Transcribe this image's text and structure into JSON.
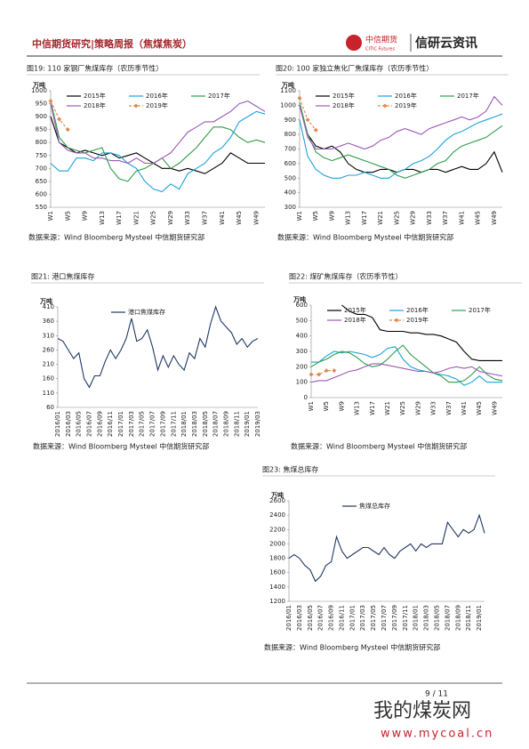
{
  "header": {
    "title": "中信期货研究|策略周报（焦煤焦炭）",
    "logo_cn": "中信期货",
    "logo_en": "CITIC Futures",
    "brand": "信研云资讯"
  },
  "chart_data": [
    {
      "type": "line",
      "title": "图19: 110 家钢厂焦煤库存（农历季节性）",
      "unit": "万吨",
      "categories": [
        "W1",
        null,
        "W5",
        null,
        "W9",
        null,
        "W13",
        null,
        "W17",
        null,
        "W21",
        null,
        "W25",
        null,
        "W29",
        null,
        "W33",
        null,
        "W37",
        null,
        "W41",
        null,
        "W45",
        null,
        "W49",
        null
      ],
      "series": [
        {
          "name": "2015年",
          "color": "#000000",
          "values": [
            900,
            800,
            780,
            760,
            770,
            760,
            750,
            760,
            740,
            750,
            760,
            740,
            720,
            700,
            700,
            690,
            700,
            690,
            680,
            700,
            720,
            760,
            740,
            720,
            720,
            720
          ]
        },
        {
          "name": "2016年",
          "color": "#1aa3d9",
          "values": [
            720,
            690,
            690,
            740,
            740,
            730,
            760,
            760,
            750,
            720,
            700,
            650,
            620,
            610,
            640,
            620,
            680,
            700,
            720,
            760,
            780,
            820,
            880,
            900,
            920,
            910
          ]
        },
        {
          "name": "2017年",
          "color": "#2e9c4a",
          "values": [
            960,
            820,
            780,
            770,
            760,
            770,
            780,
            700,
            660,
            650,
            690,
            700,
            720,
            740,
            700,
            720,
            750,
            780,
            820,
            860,
            860,
            850,
            820,
            800,
            810,
            800
          ]
        },
        {
          "name": "2018年",
          "color": "#9b59b6",
          "values": [
            950,
            800,
            770,
            760,
            760,
            740,
            740,
            730,
            730,
            720,
            740,
            720,
            720,
            740,
            760,
            800,
            840,
            860,
            880,
            880,
            900,
            920,
            950,
            960,
            940,
            920
          ]
        },
        {
          "name": "2019年",
          "color": "#e08850",
          "marker": "diamond",
          "dash": true,
          "values": [
            960,
            890,
            850,
            null,
            null,
            null,
            null,
            null,
            null,
            null,
            null,
            null,
            null,
            null,
            null,
            null,
            null,
            null,
            null,
            null,
            null,
            null,
            null,
            null,
            null,
            null
          ]
        }
      ],
      "ylim": [
        550,
        1000
      ],
      "yticks": [
        550,
        600,
        650,
        700,
        750,
        800,
        850,
        900,
        950,
        1000
      ],
      "grid": false
    },
    {
      "type": "line",
      "title": "图20: 100 家独立焦化厂焦煤库存（农历季节性）",
      "unit": "万吨",
      "categories": [
        "W1",
        null,
        "W5",
        null,
        "W9",
        null,
        "W13",
        null,
        "W17",
        null,
        "W21",
        null,
        "W25",
        null,
        "W29",
        null,
        "W33",
        null,
        "W37",
        null,
        "W41",
        null,
        "W45",
        null,
        "W49",
        null
      ],
      "series": [
        {
          "name": "2015年",
          "color": "#000000",
          "values": [
            1000,
            800,
            720,
            700,
            720,
            680,
            600,
            560,
            540,
            540,
            560,
            560,
            540,
            560,
            560,
            540,
            560,
            560,
            540,
            560,
            580,
            560,
            560,
            600,
            680,
            540
          ]
        },
        {
          "name": "2016年",
          "color": "#1aa3d9",
          "values": [
            900,
            650,
            560,
            520,
            500,
            500,
            520,
            520,
            540,
            520,
            500,
            500,
            540,
            560,
            600,
            620,
            650,
            700,
            760,
            800,
            820,
            850,
            880,
            900,
            920,
            940
          ]
        },
        {
          "name": "2017年",
          "color": "#2e9c4a",
          "values": [
            1020,
            800,
            680,
            640,
            620,
            640,
            660,
            640,
            620,
            600,
            580,
            560,
            520,
            500,
            520,
            540,
            560,
            600,
            620,
            680,
            720,
            740,
            760,
            780,
            820,
            860
          ]
        },
        {
          "name": "2018年",
          "color": "#9b59b6",
          "values": [
            1000,
            780,
            700,
            700,
            700,
            720,
            740,
            720,
            700,
            720,
            760,
            780,
            820,
            840,
            820,
            800,
            840,
            860,
            880,
            900,
            920,
            900,
            920,
            960,
            1060,
            1000
          ]
        },
        {
          "name": "2019年",
          "color": "#e08850",
          "marker": "diamond",
          "dash": true,
          "values": [
            1050,
            900,
            830,
            null,
            null,
            null,
            null,
            null,
            null,
            null,
            null,
            null,
            null,
            null,
            null,
            null,
            null,
            null,
            null,
            null,
            null,
            null,
            null,
            null,
            null,
            null
          ]
        }
      ],
      "ylim": [
        300,
        1100
      ],
      "yticks": [
        300,
        400,
        500,
        600,
        700,
        800,
        900,
        1000,
        1100
      ],
      "grid": false
    },
    {
      "type": "line",
      "title": "图21:   港口焦煤库存",
      "unit": "万吨",
      "categories": [
        "2016/01",
        null,
        "2016/03",
        null,
        "2016/05",
        null,
        "2016/07",
        null,
        "2016/09",
        null,
        "2016/11",
        null,
        "2017/01",
        null,
        "2017/03",
        null,
        "2017/05",
        null,
        "2017/07",
        null,
        "2017/09",
        null,
        "2017/11",
        null,
        "2018/01",
        null,
        "2018/03",
        null,
        "2018/05",
        null,
        "2018/07",
        null,
        "2018/09",
        null,
        "2018/11",
        null,
        "2019/01",
        null,
        "2019/03"
      ],
      "series": [
        {
          "name": "港口焦煤库存",
          "color": "#1f3864",
          "values": [
            300,
            290,
            260,
            230,
            250,
            160,
            130,
            170,
            170,
            220,
            260,
            230,
            260,
            300,
            370,
            290,
            300,
            330,
            270,
            190,
            240,
            200,
            240,
            210,
            190,
            250,
            230,
            300,
            270,
            350,
            410,
            360,
            340,
            320,
            280,
            300,
            270,
            290,
            300
          ]
        }
      ],
      "ylim": [
        60,
        410
      ],
      "yticks": [
        60,
        110,
        160,
        210,
        260,
        310,
        360,
        410
      ],
      "grid": false
    },
    {
      "type": "line",
      "title": "图22:   煤矿焦煤库存（农历季节性）",
      "unit": "万吨",
      "categories": [
        "W1",
        null,
        "W5",
        null,
        "W9",
        null,
        "W13",
        null,
        "W17",
        null,
        "W21",
        null,
        "W25",
        null,
        "W29",
        null,
        "W33",
        null,
        "W37",
        null,
        "W41",
        null,
        "W45",
        null,
        "W49",
        null
      ],
      "series": [
        {
          "name": "2015年",
          "color": "#000000",
          "values": [
            null,
            null,
            null,
            null,
            600,
            560,
            540,
            540,
            520,
            440,
            430,
            430,
            430,
            420,
            420,
            410,
            410,
            400,
            380,
            360,
            300,
            250,
            240,
            240,
            240,
            240
          ]
        },
        {
          "name": "2016年",
          "color": "#1aa3d9",
          "values": [
            230,
            230,
            270,
            300,
            290,
            300,
            290,
            280,
            260,
            280,
            320,
            330,
            250,
            200,
            180,
            170,
            160,
            150,
            140,
            120,
            80,
            100,
            140,
            100,
            100,
            100
          ]
        },
        {
          "name": "2017年",
          "color": "#2e9c4a",
          "values": [
            200,
            230,
            250,
            280,
            300,
            290,
            260,
            220,
            200,
            210,
            250,
            300,
            340,
            280,
            240,
            200,
            160,
            140,
            100,
            100,
            110,
            150,
            200,
            150,
            120,
            110
          ]
        },
        {
          "name": "2018年",
          "color": "#9b59b6",
          "values": [
            100,
            110,
            110,
            130,
            150,
            170,
            180,
            200,
            220,
            220,
            210,
            200,
            190,
            180,
            170,
            170,
            160,
            170,
            190,
            200,
            190,
            200,
            170,
            160,
            150,
            140
          ]
        },
        {
          "name": "2019年",
          "color": "#e08850",
          "marker": "diamond",
          "dash": true,
          "values": [
            150,
            150,
            175,
            175,
            null,
            null,
            null,
            null,
            null,
            null,
            null,
            null,
            null,
            null,
            null,
            null,
            null,
            null,
            null,
            null,
            null,
            null,
            null,
            null,
            null,
            null
          ]
        }
      ],
      "ylim": [
        0,
        600
      ],
      "yticks": [
        0,
        100,
        200,
        300,
        400,
        500,
        600
      ],
      "grid": false
    },
    {
      "type": "line",
      "title": "图23: 焦煤总库存",
      "unit": "万吨",
      "categories": [
        "2016/01",
        null,
        "2016/03",
        null,
        "2016/05",
        null,
        "2016/07",
        null,
        "2016/09",
        null,
        "2016/11",
        null,
        "2017/01",
        null,
        "2017/03",
        null,
        "2017/05",
        null,
        "2017/07",
        null,
        "2017/09",
        null,
        "2017/11",
        null,
        "2018/01",
        null,
        "2018/03",
        null,
        "2018/05",
        null,
        "2018/07",
        null,
        "2018/09",
        null,
        "2018/11",
        null,
        "2019/01",
        null
      ],
      "series": [
        {
          "name": "焦煤总库存",
          "color": "#1f3864",
          "values": [
            1800,
            1850,
            1800,
            1700,
            1640,
            1480,
            1550,
            1700,
            1750,
            2100,
            1900,
            1800,
            1850,
            1900,
            1950,
            1950,
            1900,
            1850,
            1950,
            1850,
            1800,
            1900,
            1950,
            2000,
            1900,
            2000,
            1950,
            2000,
            2000,
            2000,
            2300,
            2200,
            2100,
            2200,
            2150,
            2200,
            2400,
            2150
          ]
        }
      ],
      "ylim": [
        1200,
        2600
      ],
      "yticks": [
        1200,
        1400,
        1600,
        1800,
        2000,
        2200,
        2400,
        2600
      ],
      "grid": false
    }
  ],
  "sources": [
    "数据来源：Wind Bloomberg Mysteel 中信期货研究部",
    "数据来源：Wind Bloomberg Mysteel 中信期货研究部",
    "数据来源：Wind Bloomberg Mysteel 中信期货研究部",
    "数据来源：Wind Bloomberg Mysteel 中信期货研究部",
    "数据来源：Wind Bloomberg Mysteel 中信期货研究部"
  ],
  "footer": {
    "page": "9 / 11",
    "watermark": "我的煤炭网",
    "watermark_url": "www.mycoal.cn"
  }
}
